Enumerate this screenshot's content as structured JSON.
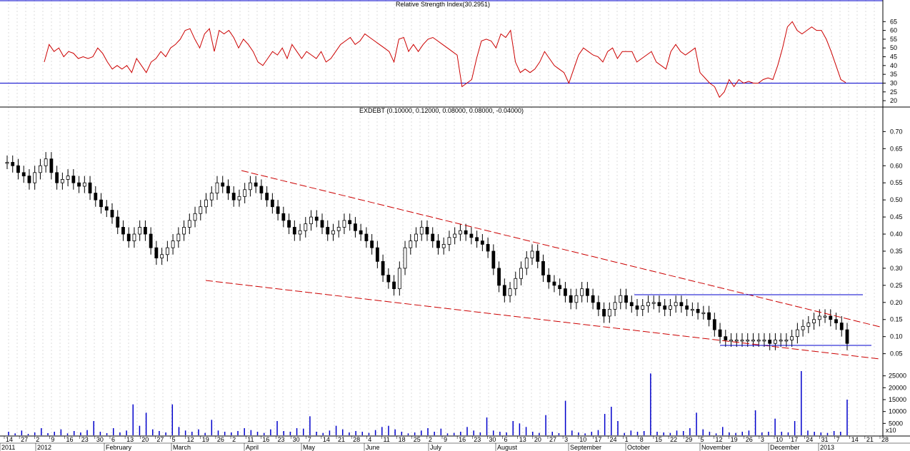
{
  "rsi_panel": {
    "title": "Relative Strength Index(30.2951)",
    "y_ticks": [
      20,
      25,
      30,
      35,
      40,
      45,
      50,
      55,
      60,
      65
    ],
    "ylim": [
      18,
      70
    ],
    "reference_lines": [
      30,
      70
    ],
    "reference_color": "#0000cc",
    "line_color": "#cc0000"
  },
  "price_panel": {
    "title": "EXDEBT (0.10000, 0.12000, 0.08000, 0.08000, -0.04000)",
    "y_ticks": [
      "0.05",
      "0.10",
      "0.15",
      "0.20",
      "0.25",
      "0.30",
      "0.35",
      "0.40",
      "0.45",
      "0.50",
      "0.55",
      "0.60",
      "0.65",
      "0.70"
    ],
    "ylim": [
      0.02,
      0.73
    ],
    "trendline_color": "#cc0000",
    "hline_color": "#0000cc"
  },
  "volume_panel": {
    "y_ticks": [
      "5000",
      "10000",
      "15000",
      "20000",
      "25000"
    ],
    "unit_label": "x10",
    "ylim": [
      0,
      27000
    ],
    "bar_color": "#0000cc"
  },
  "x_axis": {
    "day_labels": [
      "14",
      "27",
      "2",
      "9",
      "16",
      "23",
      "30",
      "6",
      "13",
      "20",
      "27",
      "5",
      "12",
      "19",
      "26",
      "2",
      "11",
      "16",
      "23",
      "30",
      "7",
      "14",
      "21",
      "28",
      "4",
      "11",
      "18",
      "25",
      "2",
      "9",
      "16",
      "23",
      "30",
      "6",
      "13",
      "20",
      "27",
      "3",
      "10",
      "17",
      "24",
      "1",
      "8",
      "15",
      "22",
      "29",
      "5",
      "12",
      "19",
      "26",
      "3",
      "10",
      "17",
      "24",
      "31",
      "7",
      "14",
      "21",
      "28"
    ],
    "month_labels": [
      "2011",
      "2012",
      "February",
      "March",
      "April",
      "May",
      "June",
      "July",
      "August",
      "September",
      "October",
      "November",
      "December",
      "2013"
    ]
  },
  "chart_data": [
    {
      "type": "line",
      "title": "Relative Strength Index(30.2951)",
      "ylim": [
        18,
        70
      ],
      "reference_lines": [
        30,
        70
      ],
      "series": [
        {
          "values": [
            42,
            52,
            48,
            50,
            45,
            48,
            47,
            44,
            45,
            44,
            45,
            50,
            47,
            42,
            38,
            40,
            38,
            40,
            36,
            44,
            40,
            36,
            42,
            44,
            48,
            45,
            50,
            52,
            55,
            60,
            61,
            55,
            50,
            58,
            61,
            48,
            60,
            58,
            60,
            56,
            50,
            55,
            52,
            48,
            42,
            40,
            44,
            48,
            46,
            50,
            44,
            52,
            48,
            44,
            48,
            46,
            44,
            48,
            42,
            44,
            48,
            52,
            54,
            56,
            52,
            54,
            58,
            56,
            54,
            52,
            50,
            48,
            42,
            55,
            56,
            48,
            52,
            48,
            52,
            55,
            56,
            54,
            52,
            50,
            48,
            46,
            28,
            30,
            32,
            44,
            54,
            55,
            54,
            50,
            58,
            56,
            60,
            42,
            36,
            38,
            36,
            38,
            42,
            48,
            44,
            40,
            38,
            36,
            30,
            38,
            46,
            50,
            48,
            46,
            45,
            42,
            48,
            50,
            44,
            48,
            48,
            48,
            42,
            44,
            46,
            48,
            42,
            40,
            38,
            48,
            52,
            48,
            46,
            48,
            50,
            36,
            33,
            30,
            28,
            22,
            25,
            32,
            28,
            32,
            30,
            31,
            30,
            30,
            32,
            33,
            32,
            40,
            50,
            62,
            65,
            60,
            58,
            60,
            62,
            60,
            60,
            55,
            48,
            40,
            32,
            30.3
          ]
        }
      ]
    },
    {
      "type": "candlestick",
      "title": "EXDEBT (0.10000, 0.12000, 0.08000, 0.08000, -0.04000)",
      "ylim": [
        0.02,
        0.73
      ],
      "values": [
        0.61,
        0.6,
        0.58,
        0.57,
        0.55,
        0.58,
        0.6,
        0.62,
        0.58,
        0.55,
        0.56,
        0.57,
        0.55,
        0.54,
        0.55,
        0.52,
        0.5,
        0.48,
        0.47,
        0.45,
        0.42,
        0.4,
        0.38,
        0.4,
        0.42,
        0.4,
        0.36,
        0.33,
        0.34,
        0.36,
        0.38,
        0.4,
        0.42,
        0.44,
        0.46,
        0.48,
        0.5,
        0.52,
        0.55,
        0.54,
        0.52,
        0.5,
        0.51,
        0.53,
        0.55,
        0.54,
        0.52,
        0.5,
        0.48,
        0.46,
        0.44,
        0.42,
        0.4,
        0.41,
        0.43,
        0.45,
        0.44,
        0.42,
        0.4,
        0.41,
        0.42,
        0.44,
        0.43,
        0.41,
        0.4,
        0.38,
        0.36,
        0.32,
        0.28,
        0.26,
        0.24,
        0.3,
        0.36,
        0.38,
        0.4,
        0.42,
        0.4,
        0.38,
        0.36,
        0.37,
        0.39,
        0.4,
        0.41,
        0.4,
        0.39,
        0.38,
        0.37,
        0.35,
        0.3,
        0.25,
        0.22,
        0.24,
        0.27,
        0.3,
        0.33,
        0.35,
        0.32,
        0.28,
        0.26,
        0.25,
        0.24,
        0.22,
        0.2,
        0.22,
        0.24,
        0.22,
        0.2,
        0.18,
        0.16,
        0.18,
        0.2,
        0.22,
        0.2,
        0.19,
        0.18,
        0.19,
        0.2,
        0.2,
        0.19,
        0.18,
        0.19,
        0.2,
        0.19,
        0.18,
        0.18,
        0.17,
        0.17,
        0.15,
        0.12,
        0.1,
        0.09,
        0.09,
        0.09,
        0.09,
        0.09,
        0.09,
        0.09,
        0.09,
        0.08,
        0.09,
        0.09,
        0.09,
        0.1,
        0.12,
        0.13,
        0.14,
        0.15,
        0.16,
        0.16,
        0.15,
        0.14,
        0.12,
        0.08
      ]
    },
    {
      "type": "bar",
      "title": "",
      "ylim": [
        0,
        27000
      ],
      "values": [
        1500,
        800,
        2000,
        600,
        1200,
        3000,
        900,
        1500,
        2500,
        800,
        1800,
        1200,
        2200,
        6000,
        1500,
        900,
        3000,
        1200,
        2000,
        13000,
        4000,
        9500,
        2500,
        1800,
        1200,
        13000,
        3500,
        2000,
        1500,
        2500,
        1000,
        6500,
        2000,
        1500,
        1200,
        1800,
        3000,
        2200,
        1500,
        1000,
        2500,
        6000,
        1800,
        1500,
        3000,
        2800,
        8000,
        1500,
        1000,
        2000,
        4000,
        2500,
        1200,
        1800,
        1500,
        1000,
        2200,
        3500,
        4000,
        2500,
        1500,
        800,
        1200,
        2000,
        3000,
        1500,
        2800,
        800,
        1000,
        1500,
        3500,
        2000,
        1200,
        7500,
        2000,
        1500,
        1200,
        6000,
        5000,
        3500,
        1500,
        1000,
        8500,
        1500,
        900,
        14500,
        2000,
        1200,
        800,
        1500,
        2200,
        9000,
        12000,
        6000,
        1000,
        2000,
        1500,
        1800,
        26000,
        1500,
        1200,
        1000,
        2000,
        1800,
        3000,
        9500,
        2500,
        1500,
        800,
        3500,
        1200,
        1000,
        1500,
        2000,
        10500,
        1200,
        1500,
        7000,
        1500,
        1200,
        6000,
        27000,
        2000,
        1500,
        1200,
        1000,
        1800,
        1500,
        15000
      ]
    }
  ]
}
